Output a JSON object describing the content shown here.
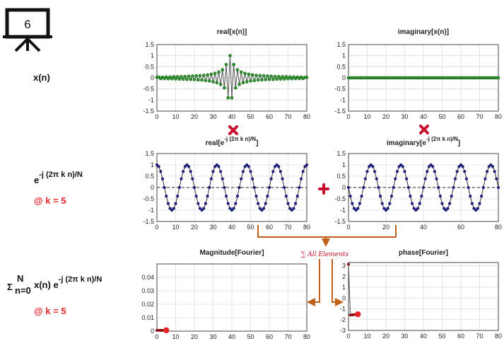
{
  "slide_number": "6",
  "labels": {
    "xn": "x(n)",
    "exp_base": "e",
    "exp_power": "-j (2π k n)/N",
    "at_k_1": "@ k = 5",
    "sigma": "Σ",
    "sigma_upper": "N",
    "sigma_lower": "n=0",
    "sum_body": " x(n) e",
    "sum_power": "-j (2π k n)/N",
    "at_k_2": "@ k = 5",
    "sum_all_elements": "∑ All Elements"
  },
  "colors": {
    "green_marker": "#2e9b2e",
    "blue_marker": "#1f1f7a",
    "red_marker": "#e8242b",
    "darkred_marker": "#8b0d10",
    "arrow": "#c0601a",
    "operator": "#c8102e"
  },
  "icons": {
    "multiply_1": "multiply-icon",
    "multiply_2": "multiply-icon",
    "plus": "plus-icon",
    "board": "presentation-board-icon"
  },
  "chart_data": [
    {
      "id": "real_x",
      "type": "line",
      "title": "real[x(n)]",
      "xlim": [
        0,
        80
      ],
      "ylim": [
        -1.5,
        1.5
      ],
      "xticks": [
        0,
        10,
        20,
        30,
        40,
        50,
        60,
        70,
        80
      ],
      "yticks": [
        1.5,
        1,
        0.5,
        0,
        -0.5,
        -1,
        -1.5
      ],
      "ytick_labels": [
        "1.5",
        "1",
        "0.5",
        "0",
        "-0.5",
        "-1",
        "-1.5"
      ],
      "markers": "green",
      "series": [
        {
          "x": [
            0,
            1,
            2,
            3,
            4,
            5,
            6,
            7,
            8,
            9,
            10,
            11,
            12,
            13,
            14,
            15,
            16,
            17,
            18,
            19,
            20,
            21,
            22,
            23,
            24,
            25,
            26,
            27,
            28,
            29,
            30,
            31,
            32,
            33,
            34,
            35,
            36,
            37,
            38,
            39,
            40,
            41,
            42,
            43,
            44,
            45,
            46,
            47,
            48,
            49,
            50,
            51,
            52,
            53,
            54,
            55,
            56,
            57,
            58,
            59,
            60,
            61,
            62,
            63,
            64,
            65,
            66,
            67,
            68,
            69,
            70,
            71,
            72,
            73,
            74,
            75,
            76,
            77,
            78,
            79,
            80
          ],
          "y": [
            0.02,
            0.03,
            -0.03,
            0.03,
            -0.03,
            0.04,
            -0.04,
            0.04,
            -0.04,
            0.05,
            -0.05,
            0.05,
            -0.05,
            0.06,
            -0.06,
            0.06,
            -0.07,
            0.07,
            -0.07,
            0.08,
            -0.08,
            0.09,
            -0.09,
            0.1,
            -0.1,
            0.11,
            -0.12,
            0.13,
            -0.14,
            0.16,
            -0.18,
            0.2,
            -0.22,
            0.26,
            -0.3,
            0.36,
            -0.45,
            0.6,
            -0.9,
            1.0,
            -0.9,
            0.6,
            -0.45,
            0.36,
            -0.3,
            0.26,
            -0.22,
            0.2,
            -0.18,
            0.16,
            -0.14,
            0.13,
            -0.12,
            0.11,
            -0.1,
            0.1,
            -0.09,
            0.09,
            -0.08,
            0.08,
            -0.07,
            0.07,
            -0.07,
            0.06,
            -0.06,
            0.06,
            -0.05,
            0.05,
            -0.05,
            0.05,
            -0.04,
            0.04,
            -0.04,
            0.04,
            -0.03,
            0.03,
            -0.03,
            0.03,
            -0.03,
            0.02,
            0.02
          ]
        }
      ]
    },
    {
      "id": "imag_x",
      "type": "line",
      "title": "imaginary[x(n)]",
      "xlim": [
        0,
        80
      ],
      "ylim": [
        -1.5,
        1.5
      ],
      "xticks": [
        0,
        10,
        20,
        30,
        40,
        50,
        60,
        70,
        80
      ],
      "yticks": [
        1.5,
        1,
        0.5,
        0,
        -0.5,
        -1,
        -1.5
      ],
      "ytick_labels": [
        "1.5",
        "1",
        "0.5",
        "0",
        "-0.5",
        "-1",
        "-1.5"
      ],
      "markers": "green",
      "series": [
        {
          "x": "0..80",
          "y": "all zeros"
        }
      ]
    },
    {
      "id": "real_exp",
      "type": "line",
      "title_main": "real[e",
      "title_sup": "-j (2π k n)/N",
      "title_end": "]",
      "xlim": [
        0,
        80
      ],
      "ylim": [
        -1.5,
        1.5
      ],
      "xticks": [
        0,
        10,
        20,
        30,
        40,
        50,
        60,
        70,
        80
      ],
      "yticks": [
        1.5,
        1,
        0.5,
        0,
        -0.5,
        -1,
        -1.5
      ],
      "ytick_labels": [
        "1.5",
        "1",
        "0.5",
        "0",
        "-0.5",
        "-1",
        "-1.5"
      ],
      "markers": "blue",
      "formula": "cos(2π·5·n/80)",
      "k": 5,
      "N": 80
    },
    {
      "id": "imag_exp",
      "type": "line",
      "title_main": "imaginary[e",
      "title_sup": "-j (2π k n)/N",
      "title_end": "]",
      "xlim": [
        0,
        80
      ],
      "ylim": [
        -1.5,
        1.5
      ],
      "xticks": [
        0,
        20,
        40,
        60,
        80
      ],
      "yticks": [
        1.5,
        1,
        0.5,
        0,
        -0.5,
        -1,
        -1.5
      ],
      "ytick_labels": [
        "1.5",
        "1",
        "0.5",
        "0",
        "-0.5",
        "-1",
        "-1.5"
      ],
      "markers": "blue",
      "formula": "-sin(2π·5·n/80)",
      "k": 5,
      "N": 80
    },
    {
      "id": "magnitude",
      "type": "line",
      "title": "Magnitude[Fourier]",
      "xlim": [
        0,
        80
      ],
      "ylim": [
        0,
        0.05
      ],
      "xticks": [
        0,
        10,
        20,
        30,
        40,
        50,
        60,
        70,
        80
      ],
      "yticks": [
        0.04,
        0.03,
        0.02,
        0.01,
        0
      ],
      "ytick_labels": [
        "0.04",
        "0.03",
        "0.02",
        "0.01",
        "0"
      ],
      "series": [
        {
          "x": [
            0,
            1,
            2,
            3,
            4,
            5
          ],
          "y": [
            0.0006,
            0.0006,
            0.0006,
            0.0006,
            0.0006,
            0.0006
          ]
        }
      ],
      "highlight": {
        "x": 5,
        "y": 0.0006
      }
    },
    {
      "id": "phase",
      "type": "line",
      "title": "phase[Fourier]",
      "xlim": [
        0,
        80
      ],
      "ylim": [
        -3,
        3.3
      ],
      "xticks": [
        0,
        10,
        20,
        30,
        40,
        50,
        60,
        70,
        80
      ],
      "yticks": [
        3,
        2,
        1,
        0,
        -1,
        -2,
        -3
      ],
      "ytick_labels": [
        "3",
        "2",
        "1",
        "0",
        "-1",
        "-2",
        "-3"
      ],
      "series": [
        {
          "x": [
            0,
            1,
            2,
            3,
            4,
            5
          ],
          "y": [
            3.14,
            -1.57,
            -1.56,
            -1.54,
            -1.52,
            -1.5
          ]
        }
      ],
      "highlight": {
        "x": 5,
        "y": -1.5
      }
    }
  ]
}
